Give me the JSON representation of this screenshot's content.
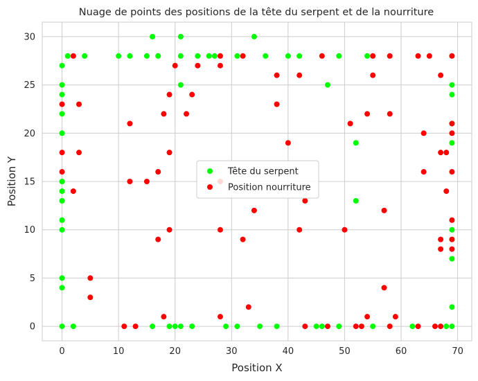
{
  "chart_data": {
    "type": "scatter",
    "title": "Nuage de points des positions de la tête du serpent et de la nourriture",
    "xlabel": "Position X",
    "ylabel": "Position Y",
    "xlim": [
      -3.5,
      72.5
    ],
    "ylim": [
      -1.5,
      31.5
    ],
    "xticks": [
      0,
      10,
      20,
      30,
      40,
      50,
      60,
      70
    ],
    "yticks": [
      0,
      5,
      10,
      15,
      20,
      25,
      30
    ],
    "grid": true,
    "legend_position": "center",
    "series": [
      {
        "name": "Tête du serpent",
        "color": "#00ff00",
        "points": [
          [
            1,
            28
          ],
          [
            4,
            28
          ],
          [
            10,
            28
          ],
          [
            12,
            28
          ],
          [
            15,
            28
          ],
          [
            17,
            28
          ],
          [
            21,
            28
          ],
          [
            24,
            28
          ],
          [
            26,
            28
          ],
          [
            27,
            28
          ],
          [
            31,
            28
          ],
          [
            36,
            28
          ],
          [
            40,
            28
          ],
          [
            42,
            28
          ],
          [
            49,
            28
          ],
          [
            54,
            28
          ],
          [
            16,
            30
          ],
          [
            21,
            30
          ],
          [
            34,
            30
          ],
          [
            0,
            27
          ],
          [
            0,
            25
          ],
          [
            0,
            24
          ],
          [
            0,
            22
          ],
          [
            0,
            20
          ],
          [
            0,
            15
          ],
          [
            0,
            14
          ],
          [
            0,
            13
          ],
          [
            0,
            11
          ],
          [
            0,
            10
          ],
          [
            0,
            5
          ],
          [
            0,
            4
          ],
          [
            0,
            0
          ],
          [
            2,
            0
          ],
          [
            16,
            0
          ],
          [
            19,
            0
          ],
          [
            20,
            0
          ],
          [
            21,
            0
          ],
          [
            23,
            0
          ],
          [
            29,
            0
          ],
          [
            31,
            0
          ],
          [
            35,
            0
          ],
          [
            38,
            0
          ],
          [
            45,
            0
          ],
          [
            46,
            0
          ],
          [
            49,
            0
          ],
          [
            55,
            0
          ],
          [
            62,
            0
          ],
          [
            68,
            0
          ],
          [
            69,
            0
          ],
          [
            21,
            25
          ],
          [
            47,
            25
          ],
          [
            52,
            19
          ],
          [
            52,
            13
          ],
          [
            69,
            25
          ],
          [
            69,
            24
          ],
          [
            69,
            21
          ],
          [
            69,
            19
          ],
          [
            69,
            10
          ],
          [
            69,
            9
          ],
          [
            69,
            7
          ],
          [
            69,
            2
          ]
        ]
      },
      {
        "name": "Position nourriture",
        "color": "#ff0000",
        "points": [
          [
            2,
            28
          ],
          [
            28,
            28
          ],
          [
            32,
            28
          ],
          [
            46,
            28
          ],
          [
            55,
            28
          ],
          [
            58,
            28
          ],
          [
            63,
            28
          ],
          [
            65,
            28
          ],
          [
            69,
            28
          ],
          [
            20,
            27
          ],
          [
            24,
            27
          ],
          [
            28,
            27
          ],
          [
            67,
            26
          ],
          [
            38,
            26
          ],
          [
            42,
            26
          ],
          [
            55,
            26
          ],
          [
            23,
            24
          ],
          [
            19,
            24
          ],
          [
            0,
            23
          ],
          [
            3,
            23
          ],
          [
            38,
            23
          ],
          [
            22,
            22
          ],
          [
            18,
            22
          ],
          [
            54,
            22
          ],
          [
            58,
            22
          ],
          [
            12,
            21
          ],
          [
            51,
            21
          ],
          [
            69,
            21
          ],
          [
            64,
            20
          ],
          [
            69,
            20
          ],
          [
            40,
            19
          ],
          [
            0,
            18
          ],
          [
            3,
            18
          ],
          [
            19,
            18
          ],
          [
            67,
            18
          ],
          [
            68,
            18
          ],
          [
            0,
            16
          ],
          [
            17,
            16
          ],
          [
            64,
            16
          ],
          [
            69,
            16
          ],
          [
            12,
            15
          ],
          [
            15,
            15
          ],
          [
            28,
            15
          ],
          [
            2,
            14
          ],
          [
            68,
            14
          ],
          [
            43,
            13
          ],
          [
            34,
            12
          ],
          [
            57,
            12
          ],
          [
            69,
            11
          ],
          [
            19,
            10
          ],
          [
            28,
            10
          ],
          [
            42,
            10
          ],
          [
            50,
            10
          ],
          [
            17,
            9
          ],
          [
            32,
            9
          ],
          [
            67,
            9
          ],
          [
            69,
            9
          ],
          [
            67,
            8
          ],
          [
            69,
            8
          ],
          [
            5,
            5
          ],
          [
            57,
            4
          ],
          [
            5,
            3
          ],
          [
            33,
            2
          ],
          [
            18,
            1
          ],
          [
            28,
            1
          ],
          [
            54,
            1
          ],
          [
            59,
            1
          ],
          [
            11,
            0
          ],
          [
            13,
            0
          ],
          [
            43,
            0
          ],
          [
            47,
            0
          ],
          [
            52,
            0
          ],
          [
            53,
            0
          ],
          [
            58,
            0
          ],
          [
            63,
            0
          ],
          [
            66,
            0
          ],
          [
            67,
            0
          ]
        ]
      }
    ]
  }
}
